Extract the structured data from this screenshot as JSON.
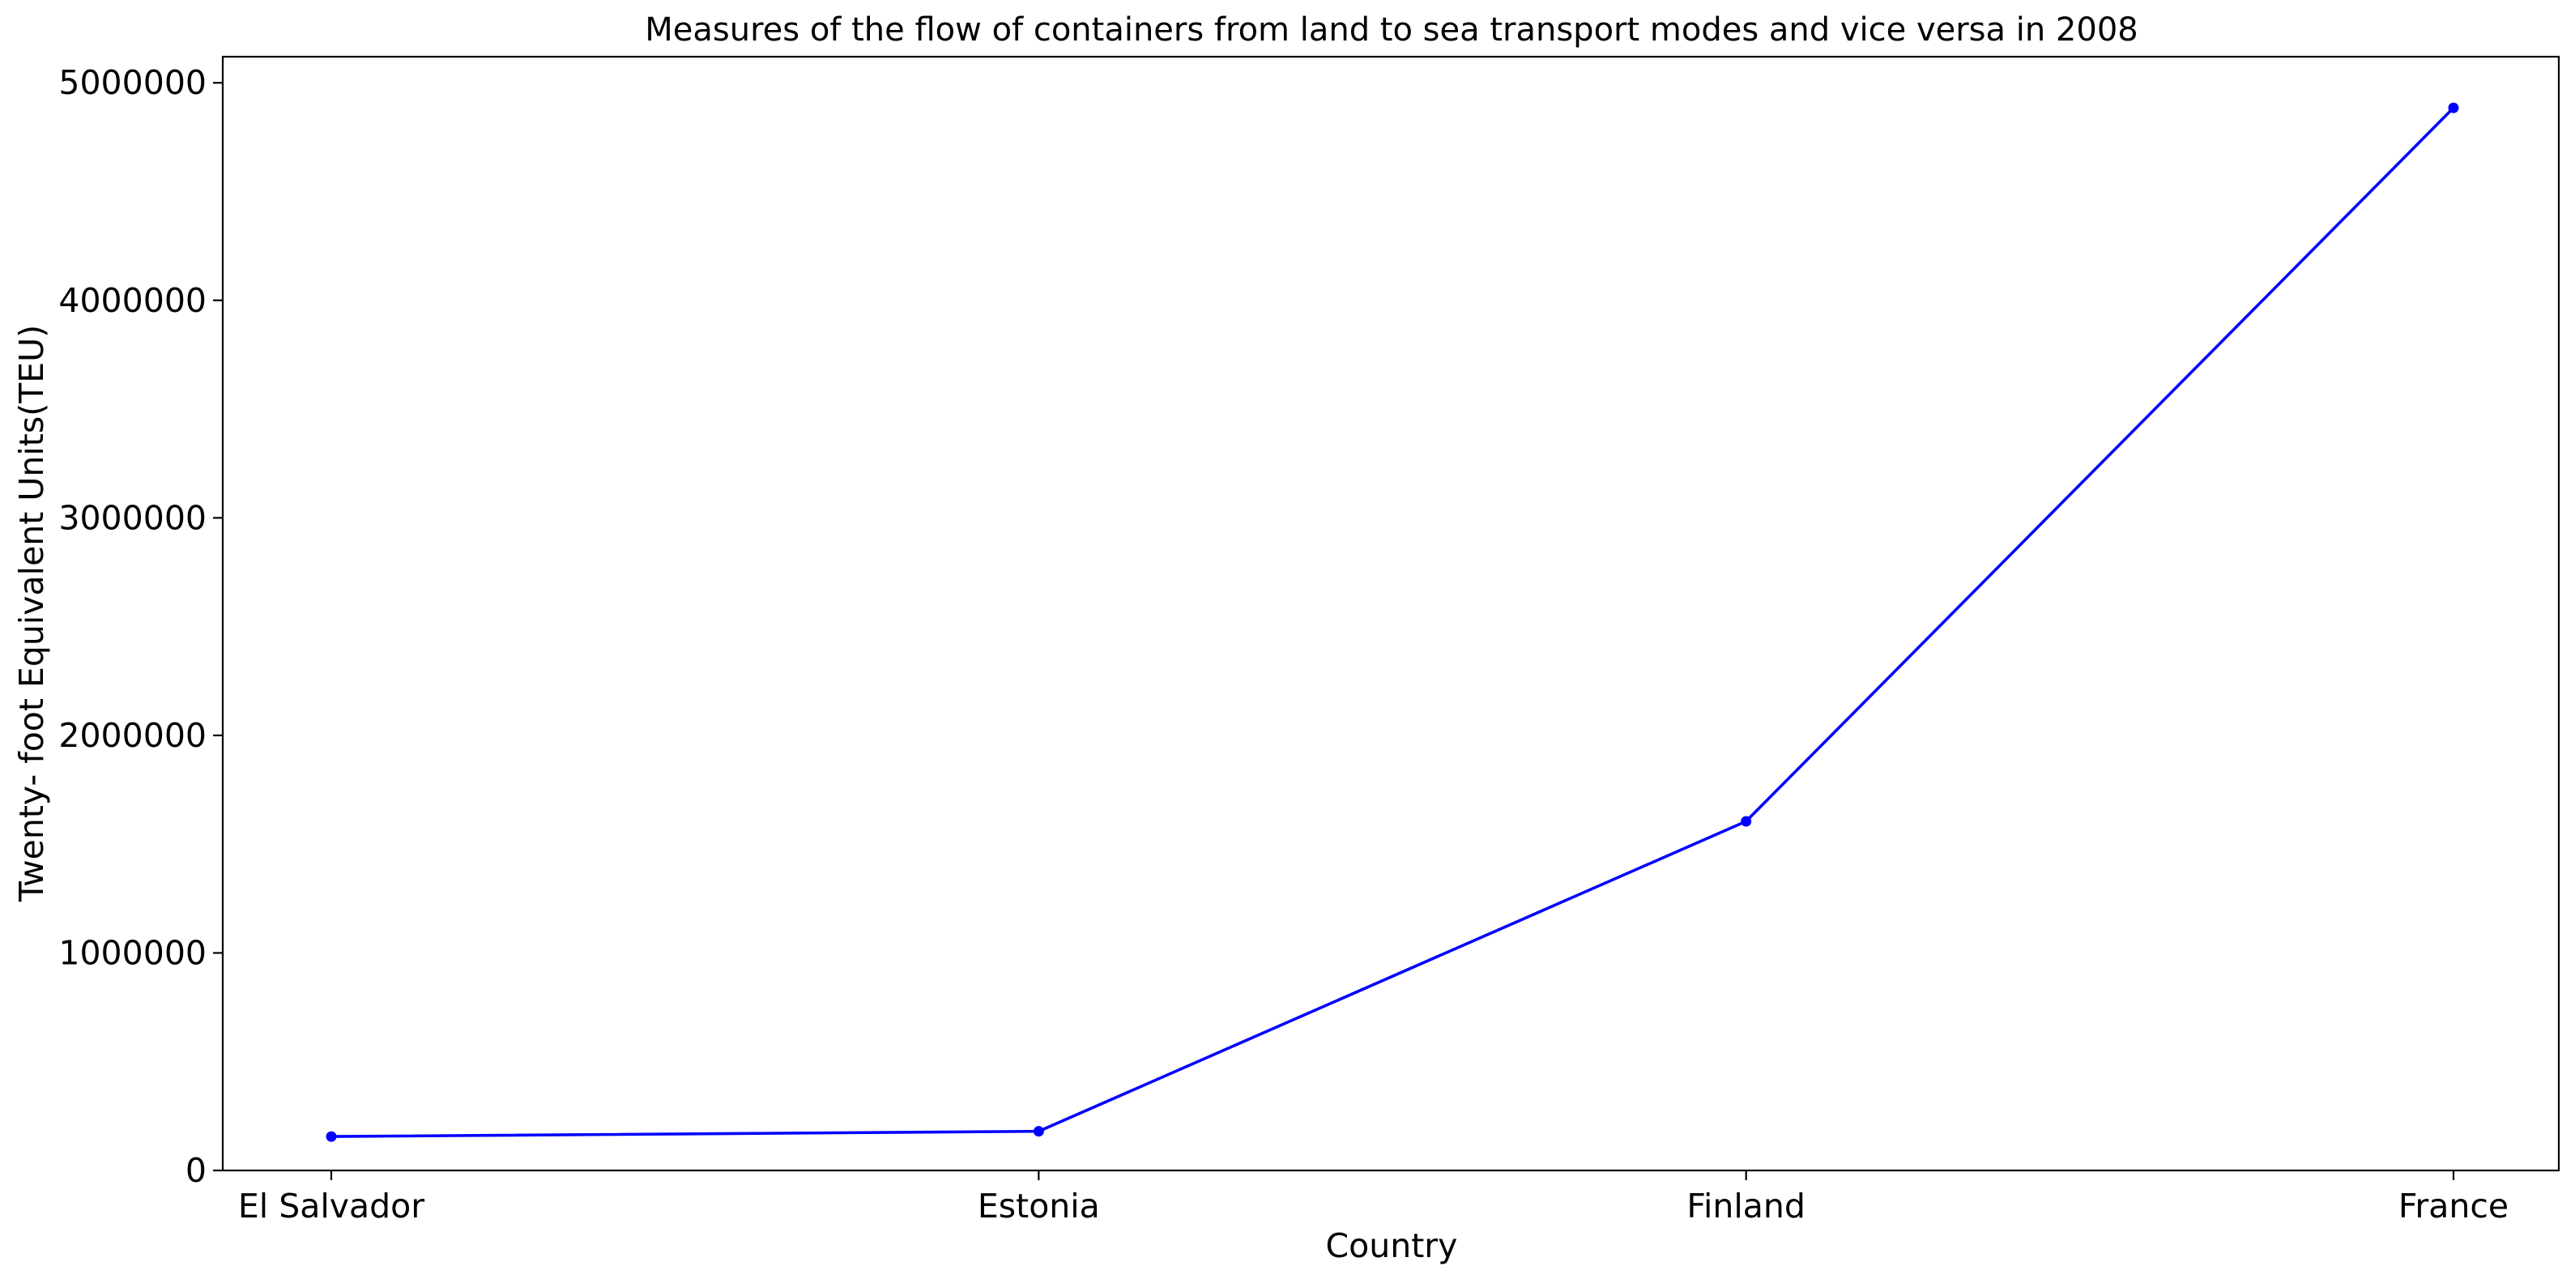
{
  "chart_data": {
    "type": "line",
    "title": "Measures of the flow of containers from land to sea transport modes and vice versa in 2008",
    "xlabel": "Country",
    "ylabel": "Twenty- foot Equivalent Units(TEU)",
    "categories": [
      "El Salvador",
      "Estonia",
      "Finland",
      "France"
    ],
    "series": [
      {
        "values": [
          156000,
          180000,
          1605000,
          4885000
        ],
        "color": "#0000ff",
        "marker": "circle"
      }
    ],
    "ylim": [
      0,
      5120000
    ],
    "yticks": [
      0,
      1000000,
      2000000,
      3000000,
      4000000,
      5000000
    ],
    "ytick_labels": [
      "0",
      "1000000",
      "2000000",
      "3000000",
      "4000000",
      "5000000"
    ],
    "grid": false,
    "legend": false
  }
}
